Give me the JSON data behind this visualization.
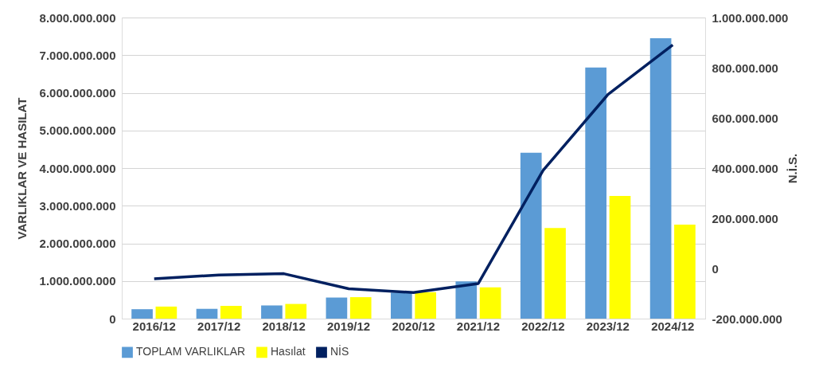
{
  "chart_data": {
    "type": "bar",
    "categories": [
      "2016/12",
      "2017/12",
      "2018/12",
      "2019/12",
      "2020/12",
      "2021/12",
      "2022/12",
      "2023/12",
      "2024/12"
    ],
    "series": [
      {
        "name": "TOPLAM VARLIKLAR",
        "color": "#5b9bd5",
        "values": [
          250000000,
          260000000,
          350000000,
          560000000,
          690000000,
          990000000,
          4410000000,
          6670000000,
          7450000000
        ]
      },
      {
        "name": "Hasılat",
        "color": "#ffff00",
        "values": [
          320000000,
          340000000,
          390000000,
          570000000,
          700000000,
          830000000,
          2410000000,
          3260000000,
          2500000000
        ]
      },
      {
        "name": "NİS",
        "type": "line",
        "axis": "y2",
        "color": "#002060",
        "values": [
          -41000000,
          -26000000,
          -21000000,
          -81000000,
          -96000000,
          -60000000,
          391000000,
          693000000,
          891000000
        ]
      }
    ],
    "ylabel": "VARLIKLAR VE HASILAT",
    "y2label": "N.İ.S.",
    "ylim": [
      0,
      8000000000
    ],
    "yticks": [
      0,
      {
        "value": 1000000000,
        "label": "1.000.000.000"
      },
      {
        "value": 2000000000,
        "label": "2.000.000.000"
      },
      {
        "value": 3000000000,
        "label": "3.000.000.000"
      },
      {
        "value": 4000000000,
        "label": "4.000.000.000"
      },
      {
        "value": 5000000000,
        "label": "5.000.000.000"
      },
      {
        "value": 6000000000,
        "label": "6.000.000.000"
      },
      {
        "value": 7000000000,
        "label": "7.000.000.000"
      },
      {
        "value": 8000000000,
        "label": "8.000.000.000"
      }
    ],
    "y2lim": [
      -200000000,
      1000000000
    ],
    "y2ticks": [
      {
        "value": -200000000,
        "label": "-200.000.000"
      },
      0,
      {
        "value": 200000000,
        "label": "200.000.000"
      },
      {
        "value": 400000000,
        "label": "400.000.000"
      },
      {
        "value": 600000000,
        "label": "600.000.000"
      },
      {
        "value": 800000000,
        "label": "800.000.000"
      },
      {
        "value": 1000000000,
        "label": "1.000.000.000"
      }
    ],
    "grid": "y",
    "legend": "bottom",
    "marker": "none",
    "line_style": "solid"
  }
}
